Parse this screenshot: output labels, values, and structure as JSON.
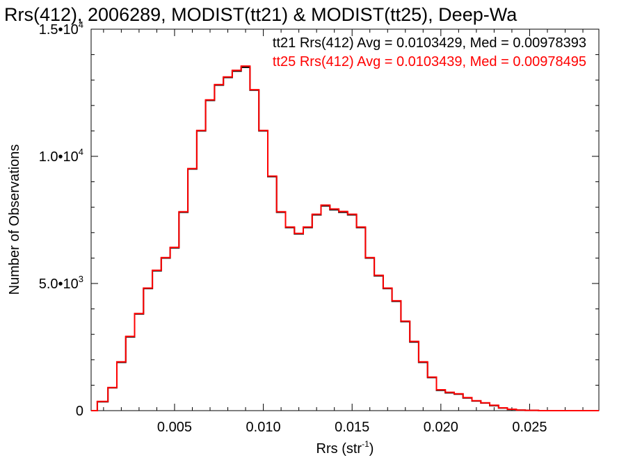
{
  "chart_data": {
    "type": "line",
    "title": "Rrs(412), 2006289, MODIST(tt21) & MODIST(tt25), Deep-Wa",
    "xlabel": "Rrs (str",
    "xlabel_sup": "-1",
    "xlabel_close": ")",
    "ylabel": "Number of Observations",
    "xlim": [
      0.0003,
      0.0289
    ],
    "ylim": [
      0,
      15000
    ],
    "x_ticks": [
      0.005,
      0.01,
      0.015,
      0.02,
      0.025
    ],
    "x_tick_labels": [
      "0.005",
      "0.010",
      "0.015",
      "0.020",
      "0.025"
    ],
    "y_ticks": [
      0,
      5000,
      10000,
      15000
    ],
    "y_tick_labels": [
      {
        "base": "0",
        "exp": ""
      },
      {
        "base": "5.0•10",
        "exp": "3"
      },
      {
        "base": "1.0•10",
        "exp": "4"
      },
      {
        "base": "1.5•10",
        "exp": "4"
      }
    ],
    "annotations": [
      "tt21 Rrs(412) Avg = 0.0103429, Med = 0.00978393",
      "tt25 Rrs(412) Avg = 0.0103439, Med = 0.00978495"
    ],
    "grid": false,
    "series": [
      {
        "name": "tt21",
        "color": "#000000",
        "x": [
          0.0003,
          0.001,
          0.0015,
          0.002,
          0.0025,
          0.003,
          0.0035,
          0.004,
          0.0045,
          0.005,
          0.0055,
          0.006,
          0.0065,
          0.007,
          0.0075,
          0.008,
          0.0085,
          0.009,
          0.0095,
          0.01,
          0.0105,
          0.011,
          0.0115,
          0.012,
          0.0125,
          0.013,
          0.0135,
          0.014,
          0.0145,
          0.015,
          0.0155,
          0.016,
          0.0165,
          0.017,
          0.0175,
          0.018,
          0.0185,
          0.019,
          0.0195,
          0.02,
          0.0205,
          0.021,
          0.0215,
          0.022,
          0.0225,
          0.023,
          0.0235,
          0.024,
          0.0245,
          0.025,
          0.026,
          0.027,
          0.028,
          0.0289
        ],
        "values": [
          0,
          350,
          900,
          1900,
          2900,
          3800,
          4800,
          5500,
          6000,
          6400,
          7800,
          9500,
          11000,
          12200,
          12800,
          13100,
          13350,
          13500,
          12600,
          11000,
          9200,
          7800,
          7200,
          6950,
          7200,
          7700,
          8050,
          7900,
          7800,
          7700,
          7200,
          6000,
          5300,
          4800,
          4300,
          3500,
          2700,
          1900,
          1300,
          800,
          700,
          650,
          500,
          380,
          300,
          200,
          100,
          50,
          20,
          10,
          0,
          0,
          0,
          0
        ]
      },
      {
        "name": "tt25",
        "color": "#ff0000",
        "x": [
          0.0003,
          0.001,
          0.0015,
          0.002,
          0.0025,
          0.003,
          0.0035,
          0.004,
          0.0045,
          0.005,
          0.0055,
          0.006,
          0.0065,
          0.007,
          0.0075,
          0.008,
          0.0085,
          0.009,
          0.0095,
          0.01,
          0.0105,
          0.011,
          0.0115,
          0.012,
          0.0125,
          0.013,
          0.0135,
          0.014,
          0.0145,
          0.015,
          0.0155,
          0.016,
          0.0165,
          0.017,
          0.0175,
          0.018,
          0.0185,
          0.019,
          0.0195,
          0.02,
          0.0205,
          0.021,
          0.0215,
          0.022,
          0.0225,
          0.023,
          0.0235,
          0.024,
          0.0245,
          0.025,
          0.026,
          0.027,
          0.028,
          0.0289
        ],
        "values": [
          0,
          360,
          910,
          1920,
          2920,
          3820,
          4820,
          5520,
          6020,
          6420,
          7820,
          9520,
          11020,
          12220,
          12820,
          13120,
          13380,
          13550,
          12620,
          11020,
          9220,
          7820,
          7220,
          6970,
          7220,
          7720,
          8080,
          7930,
          7830,
          7720,
          7220,
          6020,
          5320,
          4820,
          4320,
          3520,
          2720,
          1920,
          1320,
          820,
          720,
          660,
          510,
          390,
          310,
          210,
          110,
          55,
          22,
          12,
          0,
          0,
          0,
          0
        ]
      }
    ]
  }
}
